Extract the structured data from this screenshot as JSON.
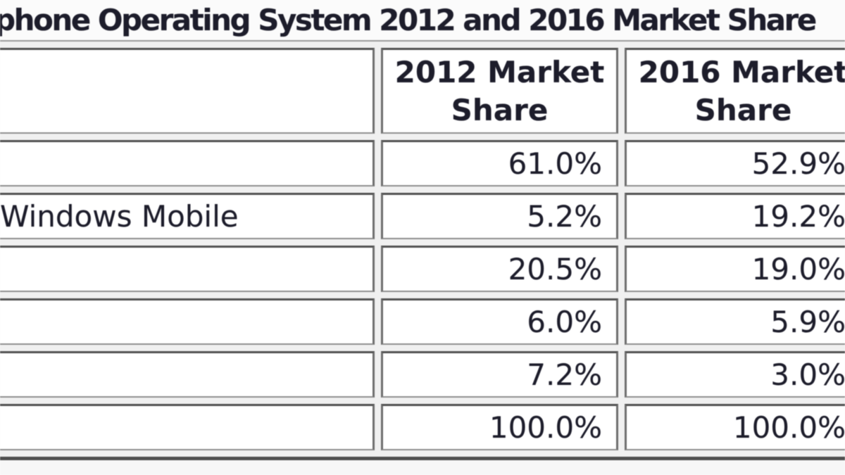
{
  "title": "phone Operating System 2012 and 2016 Market Share",
  "table": {
    "columns": [
      "",
      "2012 Market Share",
      "2016 Market Share"
    ],
    "rows": [
      {
        "label": "",
        "share_2012": "61.0%",
        "share_2016": "52.9%"
      },
      {
        "label": "Windows Mobile",
        "share_2012": "5.2%",
        "share_2016": "19.2%"
      },
      {
        "label": "",
        "share_2012": "20.5%",
        "share_2016": "19.0%"
      },
      {
        "label": "",
        "share_2012": "6.0%",
        "share_2016": "5.9%"
      },
      {
        "label": "",
        "share_2012": "7.2%",
        "share_2016": "3.0%"
      },
      {
        "label": "",
        "share_2012": "100.0%",
        "share_2016": "100.0%"
      }
    ]
  },
  "chart_data": {
    "type": "table",
    "title": "phone Operating System 2012 and 2016 Market Share",
    "columns": [
      "2012 Market Share",
      "2016 Market Share"
    ],
    "row_labels": [
      "",
      "Windows Mobile",
      "",
      "",
      "",
      ""
    ],
    "series": [
      {
        "name": "2012 Market Share",
        "values": [
          61.0,
          5.2,
          20.5,
          6.0,
          7.2,
          100.0
        ]
      },
      {
        "name": "2016 Market Share",
        "values": [
          52.9,
          19.2,
          19.0,
          5.9,
          3.0,
          100.0
        ]
      }
    ],
    "units": "percent",
    "notes_layout": "cropped screenshot: first column labels and outer edges cut off at image borders"
  },
  "colors": {
    "text": "#1d1d2b",
    "cell_background": "#ffffff",
    "page_background": "#fbfbfb",
    "grid_border_dark": "#515151",
    "grid_border_mid": "#6e6e6e",
    "outer_bottom_rule": "#4e4e4e",
    "outer_top_rule": "#9a9a9a"
  }
}
